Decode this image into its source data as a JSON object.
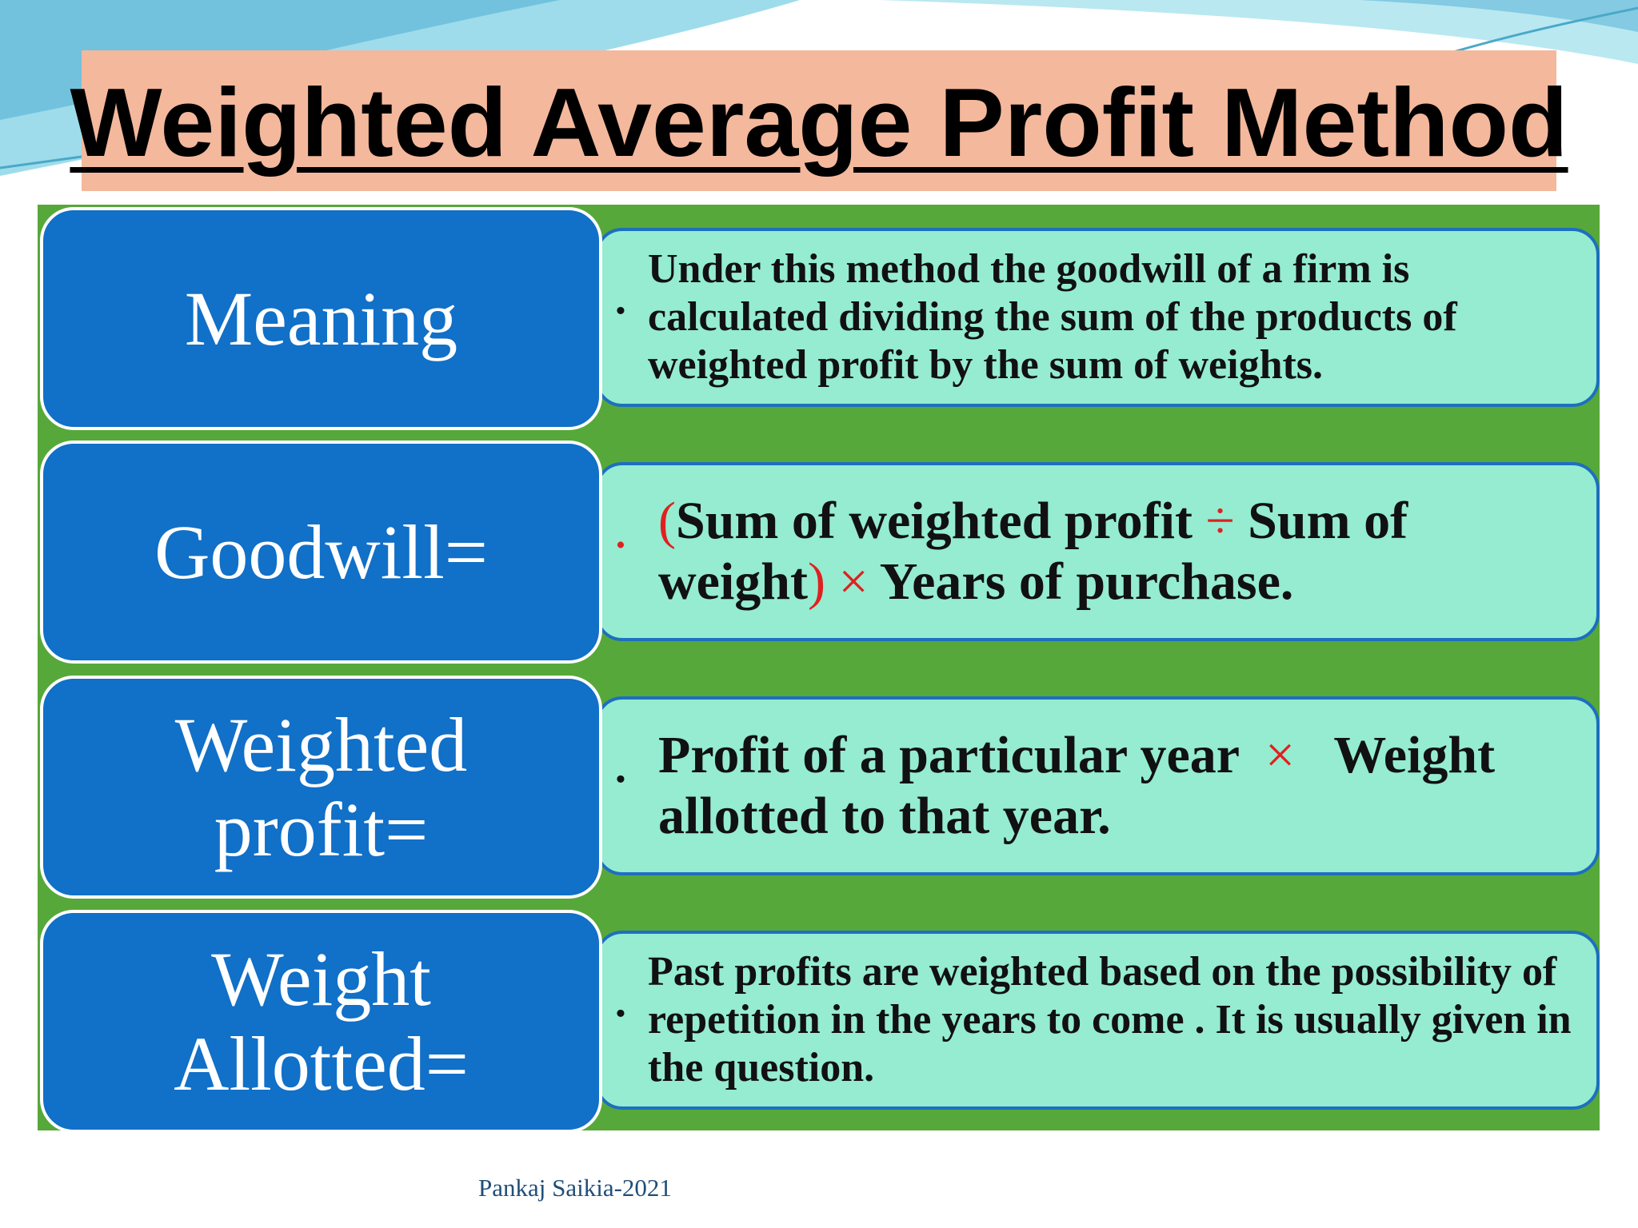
{
  "title": "Weighted Average Profit Method",
  "rows": [
    {
      "label": "Meaning",
      "description": "Under this method the goodwill of a firm is calculated dividing the sum of the products of weighted profit by the sum of weights."
    },
    {
      "label": "Goodwill=",
      "description": [
        "(",
        "Sum of weighted profit",
        "÷",
        "Sum of weight",
        ")",
        "×",
        "Years of purchase."
      ]
    },
    {
      "label": "Weighted profit=",
      "description": [
        "Profit of a particular year",
        "×",
        "Weight allotted to that year."
      ]
    },
    {
      "label": "Weight Allotted=",
      "description": "Past profits are weighted based on the possibility of repetition in the years to come . It is usually given in the question."
    }
  ],
  "footer": "Pankaj Saikia-2021"
}
